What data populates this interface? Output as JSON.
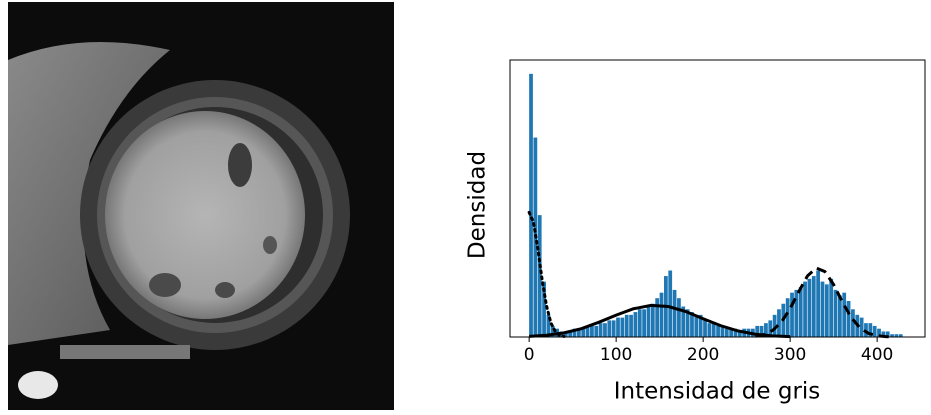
{
  "chart_data": {
    "type": "histogram",
    "xlabel": "Intensidad de gris",
    "ylabel": "Densidad",
    "bins": [
      0,
      5,
      10,
      15,
      20,
      25,
      30,
      35,
      40,
      45,
      50,
      55,
      60,
      65,
      70,
      75,
      80,
      85,
      90,
      95,
      100,
      105,
      110,
      115,
      120,
      125,
      130,
      135,
      140,
      145,
      150,
      155,
      160,
      165,
      170,
      175,
      180,
      185,
      190,
      195,
      200,
      205,
      210,
      215,
      220,
      225,
      230,
      235,
      240,
      245,
      250,
      255,
      260,
      265,
      270,
      275,
      280,
      285,
      290,
      295,
      300,
      305,
      310,
      315,
      320,
      325,
      330,
      335,
      340,
      345,
      350,
      355,
      360,
      365,
      370,
      375,
      380,
      385,
      390,
      395,
      400,
      405,
      410,
      415,
      420,
      425,
      430,
      435,
      440,
      445,
      450
    ],
    "values": [
      95,
      72,
      44,
      20,
      8,
      4,
      3,
      2,
      2,
      2,
      3,
      3,
      3,
      4,
      4,
      4,
      5,
      5,
      6,
      6,
      7,
      7,
      8,
      8,
      9,
      10,
      10,
      11,
      12,
      14,
      16,
      22,
      24,
      17,
      14,
      11,
      10,
      9,
      8,
      8,
      6,
      5,
      5,
      4,
      4,
      3,
      3,
      3,
      2,
      3,
      3,
      3,
      4,
      4,
      5,
      6,
      8,
      10,
      12,
      14,
      16,
      17,
      18,
      20,
      21,
      22,
      24,
      20,
      19,
      21,
      17,
      15,
      16,
      13,
      10,
      8,
      7,
      5,
      5,
      4,
      3,
      2,
      2,
      1,
      1,
      1,
      0,
      0,
      0,
      0
    ],
    "color": "#1f77b4",
    "xlim": [
      -22,
      455
    ],
    "ylim": [
      0,
      100
    ],
    "xticks": [
      0,
      100,
      200,
      300,
      400
    ],
    "curves": [
      {
        "style": "dotted",
        "color": "#000000",
        "x": [
          0,
          5,
          10,
          15,
          20,
          25,
          30,
          35,
          40
        ],
        "values": [
          45,
          41.3,
          31.9,
          20.5,
          11.2,
          5.1,
          2,
          0.6,
          0.2
        ]
      },
      {
        "style": "solid",
        "color": "#000000",
        "x": [
          0,
          20,
          40,
          60,
          80,
          100,
          120,
          140,
          160,
          180,
          200,
          220,
          240,
          260,
          280,
          300
        ],
        "values": [
          0.24,
          0.64,
          1.5,
          3.0,
          5.3,
          7.9,
          10.2,
          11.4,
          11.0,
          9.2,
          6.6,
          4.1,
          2.2,
          1.0,
          0.4,
          0.14
        ]
      },
      {
        "style": "dashed",
        "color": "#000000",
        "x": [
          260,
          270,
          280,
          290,
          300,
          310,
          320,
          330,
          340,
          350,
          360,
          370,
          380,
          390,
          400,
          410,
          420
        ],
        "values": [
          0.28,
          0.89,
          2.4,
          5.4,
          10.3,
          16.4,
          22.1,
          24.9,
          23.6,
          18.9,
          12.7,
          7.1,
          3.4,
          1.3,
          0.45,
          0.13,
          0
        ]
      }
    ]
  }
}
